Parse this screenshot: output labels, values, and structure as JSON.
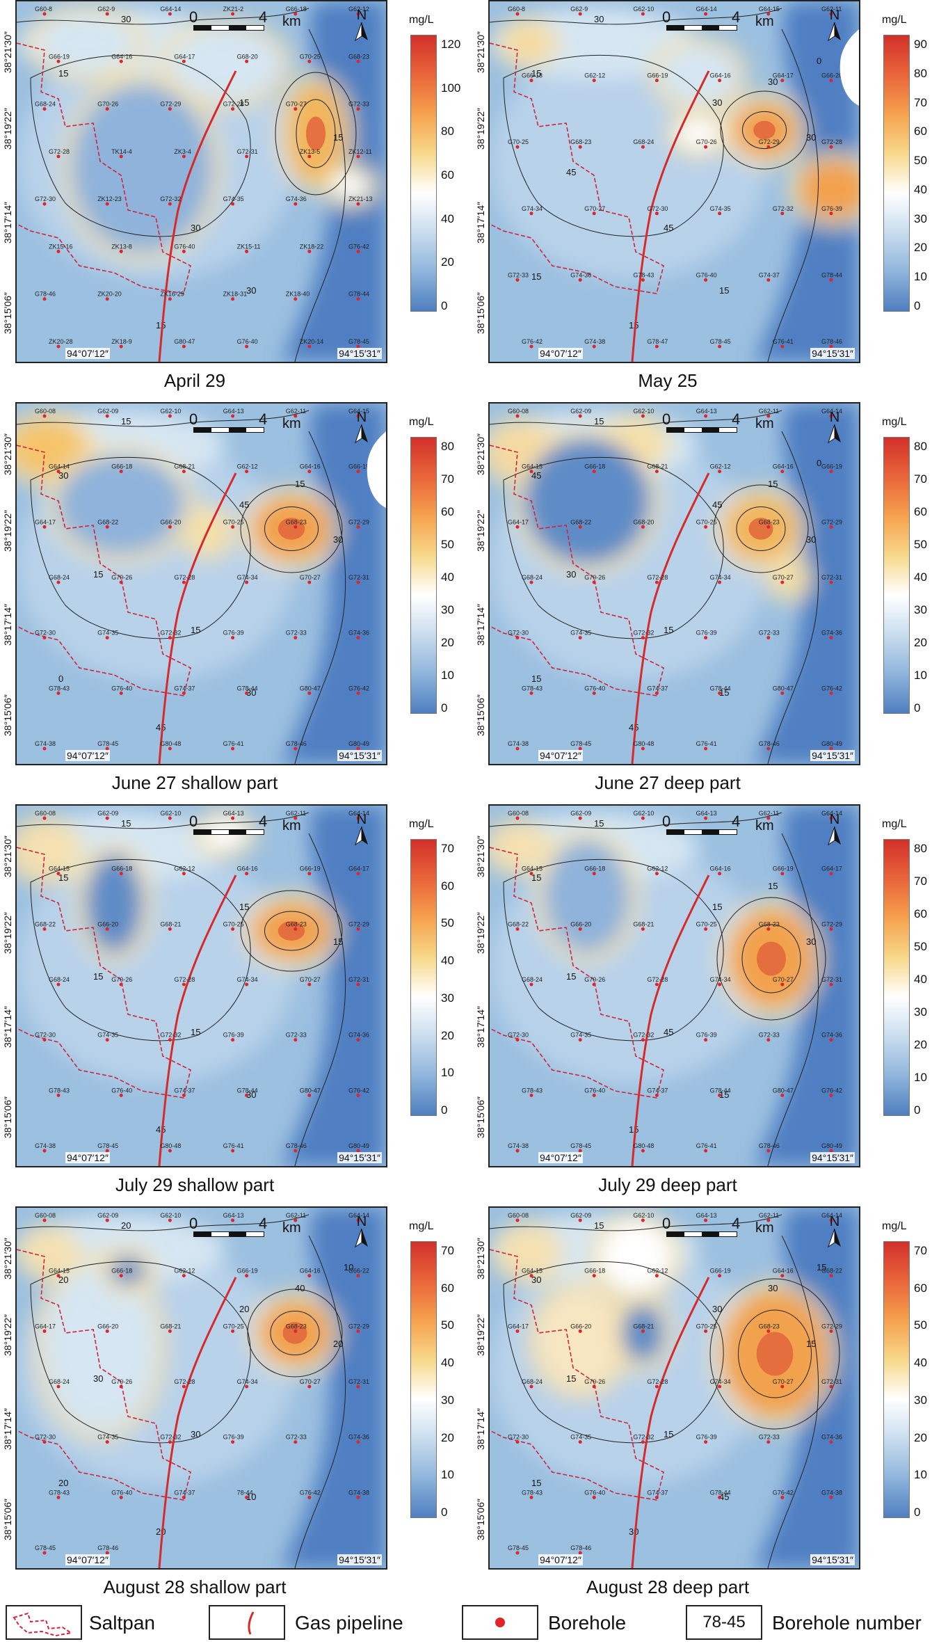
{
  "panels": [
    {
      "id": "p1",
      "caption": "April 29",
      "unit": "mg/L",
      "ticks": [
        "120",
        "100",
        "80",
        "60",
        "40",
        "20",
        "0"
      ],
      "lat_top": "38°21′30″",
      "lat_mid": "38°19′22″",
      "lat_low": "38°17′14″",
      "lat_bot": "38°15′06″",
      "lon_left": "94°07′12″",
      "lon_right": "94°15′31″",
      "scale_0": "0",
      "scale_4": "4",
      "scale_km": "km",
      "north": "N",
      "contours": [
        "30",
        "15",
        "15",
        "30",
        "15",
        "15",
        "30"
      ],
      "boreholes": [
        "G60-8",
        "G62-9",
        "G64-14",
        "ZK21-2",
        "G66-18",
        "G62-12",
        "G66-19",
        "G64-16",
        "G64-17",
        "G68-20",
        "G70-25",
        "G68-23",
        "G68-24",
        "G70-26",
        "G72-29",
        "G72-28",
        "G70-27",
        "G72-33",
        "G72-28",
        "TK14-4",
        "ZK3-4",
        "G72-31",
        "ZK13-5",
        "ZK12-11",
        "G72-30",
        "ZK12-23",
        "G72-32",
        "G74-35",
        "G74-36",
        "ZK21-13",
        "ZK15-16",
        "ZK13-8",
        "G76-40",
        "ZK15-11",
        "ZK18-22",
        "G76-42",
        "G78-46",
        "ZK20-20",
        "ZK16-29",
        "ZK18-31",
        "ZK18-40",
        "G78-44",
        "ZK20-28",
        "ZK18-9",
        "G80-47",
        "G76-40",
        "ZK20-14",
        "G78-45"
      ]
    },
    {
      "id": "p2",
      "caption": "May 25",
      "unit": "mg/L",
      "ticks": [
        "90",
        "80",
        "70",
        "60",
        "50",
        "40",
        "30",
        "20",
        "10",
        "0"
      ],
      "lat_top": "38°21′30″",
      "lat_mid": "38°19′22″",
      "lat_low": "38°17′14″",
      "lat_bot": "38°15′06″",
      "lon_left": "94°07′12″",
      "lon_right": "94°15′31″",
      "scale_0": "0",
      "scale_4": "4",
      "scale_km": "km",
      "north": "N",
      "contours": [
        "30",
        "15",
        "30",
        "45",
        "30",
        "15",
        "15",
        "45",
        "30",
        "15",
        "0"
      ],
      "boreholes": [
        "G60-8",
        "G62-9",
        "G62-10",
        "G64-14",
        "G64-15",
        "G62-11",
        "G66-18",
        "G62-12",
        "G66-19",
        "G64-16",
        "G64-17",
        "G66-20",
        "G70-25",
        "G68-23",
        "G68-24",
        "G70-26",
        "G72-29",
        "G72-28",
        "G74-34",
        "G70-27",
        "G72-30",
        "G74-35",
        "G72-32",
        "G76-39",
        "G72-33",
        "G74-36",
        "G78-43",
        "G76-40",
        "G74-37",
        "G78-44",
        "G76-42",
        "G74-38",
        "G78-47",
        "G78-45",
        "G76-41",
        "G78-46"
      ]
    },
    {
      "id": "p3",
      "caption": "June 27 shallow part",
      "unit": "mg/L",
      "ticks": [
        "80",
        "70",
        "60",
        "50",
        "40",
        "30",
        "20",
        "10",
        "0"
      ],
      "lat_top": "38°21′30″",
      "lat_mid": "38°19′22″",
      "lat_low": "38°17′14″",
      "lat_bot": "38°15′06″",
      "lon_left": "94°07′12″",
      "lon_right": "94°15′31″",
      "scale_0": "0",
      "scale_4": "4",
      "scale_km": "km",
      "north": "N",
      "contours": [
        "15",
        "30",
        "45",
        "15",
        "30",
        "45",
        "30",
        "15",
        "15",
        "0"
      ],
      "boreholes": [
        "G60-08",
        "G62-09",
        "G62-10",
        "G64-13",
        "G62-11",
        "G64-15",
        "G64-14",
        "G66-18",
        "G68-21",
        "G62-12",
        "G64-16",
        "G66-19",
        "G64-17",
        "G68-22",
        "G66-20",
        "G70-25",
        "G68-23",
        "G72-29",
        "G68-24",
        "G70-26",
        "G72-28",
        "G74-34",
        "G70-27",
        "G72-31",
        "G72-30",
        "G74-35",
        "G72-32",
        "G76-39",
        "G72-33",
        "G74-36",
        "G78-43",
        "G76-40",
        "G74-37",
        "G78-44",
        "G80-47",
        "G76-42",
        "G74-38",
        "G78-45",
        "G80-48",
        "G76-41",
        "G78-46",
        "G80-49"
      ]
    },
    {
      "id": "p4",
      "caption": "June 27 deep part",
      "unit": "mg/L",
      "ticks": [
        "80",
        "70",
        "60",
        "50",
        "40",
        "30",
        "20",
        "10",
        "0"
      ],
      "lat_top": "38°21′30″",
      "lat_mid": "38°19′22″",
      "lat_low": "38°17′14″",
      "lat_bot": "38°15′06″",
      "lon_left": "94°07′12″",
      "lon_right": "94°15′31″",
      "scale_0": "0",
      "scale_4": "4",
      "scale_km": "km",
      "north": "N",
      "contours": [
        "15",
        "45",
        "45",
        "15",
        "30",
        "45",
        "15",
        "30",
        "15",
        "15",
        "0"
      ],
      "boreholes": [
        "G60-08",
        "G62-09",
        "G62-10",
        "G64-13",
        "G62-11",
        "G64-14",
        "G64-15",
        "G66-18",
        "G68-21",
        "G62-12",
        "G64-16",
        "G66-19",
        "G64-17",
        "G68-22",
        "G68-20",
        "G70-25",
        "G68-23",
        "G72-29",
        "G68-24",
        "G70-26",
        "G72-28",
        "G74-34",
        "G70-27",
        "G72-31",
        "G72-30",
        "G74-35",
        "G72-32",
        "G76-39",
        "G72-33",
        "G74-36",
        "G78-43",
        "G76-40",
        "G74-37",
        "G78-44",
        "G80-47",
        "G76-42",
        "G74-38",
        "G78-45",
        "G80-48",
        "G76-41",
        "G78-46",
        "G80-49"
      ]
    },
    {
      "id": "p5",
      "caption": "July 29 shallow part",
      "unit": "mg/L",
      "ticks": [
        "70",
        "60",
        "50",
        "40",
        "30",
        "20",
        "10",
        "0"
      ],
      "lat_top": "38°21′30″",
      "lat_mid": "38°19′22″",
      "lat_low": "38°17′14″",
      "lat_bot": "38°15′06″",
      "lon_left": "94°07′12″",
      "lon_right": "94°15′31″",
      "scale_0": "0",
      "scale_4": "4",
      "scale_km": "km",
      "north": "N",
      "contours": [
        "15",
        "15",
        "15",
        "15",
        "15",
        "45",
        "30",
        "15"
      ],
      "boreholes": [
        "G60-08",
        "G62-09",
        "G62-10",
        "G64-13",
        "G62-11",
        "G64-14",
        "G64-15",
        "G66-18",
        "G62-12",
        "G64-16",
        "G66-19",
        "G64-17",
        "G68-22",
        "G66-20",
        "G68-21",
        "G70-25",
        "G68-23",
        "G72-29",
        "G68-24",
        "G70-26",
        "G72-28",
        "G74-34",
        "G70-27",
        "G72-31",
        "G72-30",
        "G74-35",
        "G72-32",
        "G76-39",
        "G72-33",
        "G74-36",
        "G78-43",
        "G76-40",
        "G74-37",
        "G78-44",
        "G80-47",
        "G76-42",
        "G74-38",
        "G78-45",
        "G80-48",
        "G76-41",
        "G78-46",
        "G80-49"
      ]
    },
    {
      "id": "p6",
      "caption": "July 29 deep part",
      "unit": "mg/L",
      "ticks": [
        "80",
        "70",
        "60",
        "50",
        "40",
        "30",
        "20",
        "10",
        "0"
      ],
      "lat_top": "38°21′30″",
      "lat_mid": "38°19′22″",
      "lat_low": "38°17′14″",
      "lat_bot": "38°15′06″",
      "lon_left": "94°07′12″",
      "lon_right": "94°15′31″",
      "scale_0": "0",
      "scale_4": "4",
      "scale_km": "km",
      "north": "N",
      "contours": [
        "15",
        "15",
        "15",
        "45",
        "30",
        "15",
        "15",
        "15",
        "15"
      ],
      "boreholes": [
        "G60-08",
        "G62-09",
        "G62-10",
        "G64-13",
        "G62-11",
        "G64-14",
        "G64-15",
        "G66-18",
        "G62-12",
        "G64-16",
        "G66-19",
        "G64-17",
        "G68-22",
        "G66-20",
        "G68-21",
        "G70-25",
        "G68-23",
        "G72-29",
        "G68-24",
        "G70-26",
        "G72-28",
        "G74-34",
        "G70-27",
        "G72-31",
        "G72-30",
        "G74-35",
        "G72-32",
        "G76-39",
        "G72-33",
        "G74-36",
        "G78-43",
        "G76-40",
        "G74-37",
        "G78-44",
        "G80-47",
        "G76-42",
        "G74-38",
        "G78-45",
        "G80-48",
        "G76-41",
        "G78-46",
        "G80-49"
      ]
    },
    {
      "id": "p7",
      "caption": "August 28 shallow part",
      "unit": "mg/L",
      "ticks": [
        "70",
        "60",
        "50",
        "40",
        "30",
        "20",
        "10",
        "0"
      ],
      "lat_top": "38°21′30″",
      "lat_mid": "38°19′22″",
      "lat_low": "38°17′14″",
      "lat_bot": "38°15′06″",
      "lon_left": "94°07′12″",
      "lon_right": "94°15′31″",
      "scale_0": "0",
      "scale_4": "4",
      "scale_km": "km",
      "north": "N",
      "contours": [
        "20",
        "20",
        "20",
        "30",
        "20",
        "20",
        "10",
        "30",
        "40",
        "20",
        "10"
      ],
      "boreholes": [
        "G60-08",
        "G62-09",
        "G62-10",
        "G64-13",
        "G62-11",
        "G64-14",
        "G64-15",
        "G66-18",
        "G62-12",
        "G66-19",
        "G64-16",
        "G66-22",
        "G64-17",
        "G66-20",
        "G68-21",
        "G70-25",
        "G68-23",
        "G72-29",
        "G68-24",
        "G70-26",
        "G72-28",
        "G74-34",
        "G70-27",
        "G72-31",
        "G72-30",
        "G74-35",
        "G72-32",
        "G76-39",
        "G72-33",
        "G74-36",
        "G78-43",
        "G76-40",
        "G74-37",
        "78-44",
        "G76-42",
        "G74-38",
        "G78-45",
        "G78-46"
      ]
    },
    {
      "id": "p8",
      "caption": "August 28 deep part",
      "unit": "mg/L",
      "ticks": [
        "70",
        "60",
        "50",
        "40",
        "30",
        "20",
        "10",
        "0"
      ],
      "lat_top": "38°21′30″",
      "lat_mid": "38°19′22″",
      "lat_low": "38°17′14″",
      "lat_bot": "38°15′06″",
      "lon_left": "94°07′12″",
      "lon_right": "94°15′31″",
      "scale_0": "0",
      "scale_4": "4",
      "scale_km": "km",
      "north": "N",
      "contours": [
        "15",
        "30",
        "30",
        "15",
        "15",
        "30",
        "45",
        "15",
        "30",
        "15",
        "15"
      ],
      "boreholes": [
        "G60-08",
        "G62-09",
        "G62-10",
        "G64-13",
        "G62-11",
        "G64-14",
        "G64-15",
        "G66-18",
        "G62-12",
        "G66-19",
        "G64-16",
        "G68-22",
        "G64-17",
        "G66-20",
        "G68-21",
        "G70-25",
        "G68-23",
        "G72-29",
        "G68-24",
        "G70-26",
        "G72-28",
        "G74-34",
        "G70-27",
        "G72-31",
        "G72-30",
        "G74-35",
        "G72-32",
        "G76-39",
        "G72-33",
        "G74-36",
        "G78-43",
        "G76-40",
        "G74-37",
        "G78-44",
        "G76-42",
        "G74-38",
        "G78-45",
        "G78-46"
      ]
    }
  ],
  "legend": {
    "saltpan": "Saltpan",
    "pipeline": "Gas pipeline",
    "borehole": "Borehole",
    "number_example": "78-45",
    "number_label": "Borehole number"
  },
  "colors": {
    "low": "#3f70b8",
    "mid_low": "#9ec0e0",
    "neutral": "#ffffff",
    "mid_high": "#f6c46a",
    "high": "#d2302a",
    "pipeline": "#d62a2a",
    "saltpan": "#d0243a"
  }
}
